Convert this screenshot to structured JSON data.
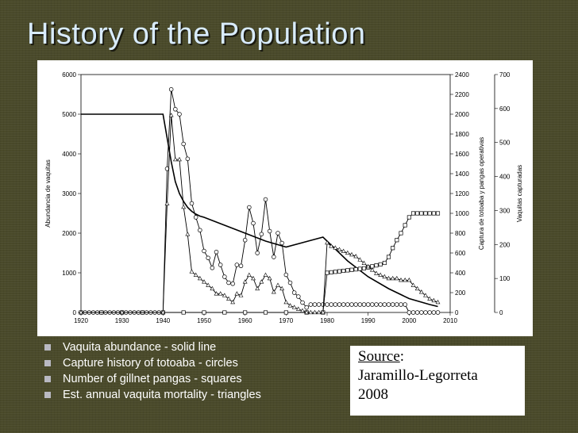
{
  "slide": {
    "title": "History of the Population",
    "bullets": [
      "Vaquita abundance - solid line",
      "Capture history of totoaba - circles",
      "Number of gillnet pangas - squares",
      "Est. annual vaquita mortality - triangles"
    ],
    "source": {
      "label": "Source",
      "colon": ":",
      "author": "Jaramillo-Legorreta",
      "year": "2008"
    }
  },
  "colors": {
    "background": "#4a4a2a",
    "title": "#d9ecff",
    "bullet": "#b9b9c2",
    "series": "#000000"
  },
  "chart_data": {
    "type": "line",
    "title": "",
    "xlabel": "",
    "xlim": [
      1920,
      2010
    ],
    "x_ticks": [
      "1920",
      "1930",
      "1940",
      "1950",
      "1960",
      "1970",
      "1980",
      "1990",
      "2000",
      "2010"
    ],
    "y_axes": [
      {
        "label": "Abundancia de vaquitas",
        "position": "left",
        "ylim": [
          0,
          6000
        ],
        "ticks": [
          "0",
          "1000",
          "2000",
          "3000",
          "4000",
          "5000",
          "6000"
        ]
      },
      {
        "label": "Captura de totoaba y pangas operativas",
        "position": "right-inner",
        "ylim": [
          0,
          2400
        ],
        "ticks": [
          "0",
          "200",
          "400",
          "600",
          "800",
          "1000",
          "1200",
          "1400",
          "1600",
          "1800",
          "2000",
          "2200",
          "2400"
        ]
      },
      {
        "label": "Vaquitas capturadas",
        "position": "right-outer",
        "ylim": [
          0,
          700
        ],
        "ticks": [
          "0",
          "100",
          "200",
          "300",
          "400",
          "500",
          "600",
          "700"
        ]
      }
    ],
    "grid": false,
    "legend": "none",
    "series": [
      {
        "axis": 0,
        "marker": "none",
        "x": [
          1920,
          1940,
          1941,
          1942,
          1943,
          1944,
          1945,
          1946,
          1947,
          1948,
          1949,
          1950,
          1955,
          1960,
          1965,
          1970,
          1979,
          1985,
          1990,
          1995,
          2000,
          2005,
          2007
        ],
        "y": [
          5000,
          5000,
          4400,
          3800,
          3300,
          3000,
          2800,
          2650,
          2550,
          2480,
          2430,
          2400,
          2200,
          2000,
          1800,
          1650,
          1900,
          1300,
          900,
          600,
          350,
          200,
          150
        ]
      },
      {
        "axis": 1,
        "marker": "circle",
        "x": [
          1920,
          1921,
          1922,
          1923,
          1924,
          1925,
          1926,
          1927,
          1928,
          1929,
          1930,
          1931,
          1932,
          1933,
          1934,
          1935,
          1936,
          1937,
          1938,
          1939,
          1940,
          1941,
          1942,
          1943,
          1944,
          1945,
          1946,
          1947,
          1948,
          1949,
          1950,
          1951,
          1952,
          1953,
          1954,
          1955,
          1956,
          1957,
          1958,
          1959,
          1960,
          1961,
          1962,
          1963,
          1964,
          1965,
          1966,
          1967,
          1968,
          1969,
          1970,
          1971,
          1972,
          1973,
          1974,
          1975,
          1976,
          1977,
          1978,
          1979,
          1980,
          1981,
          1982,
          1983,
          1984,
          1985,
          1986,
          1987,
          1988,
          1989,
          1990,
          1991,
          1992,
          1993,
          1994,
          1995,
          1996,
          1997,
          1998,
          1999,
          2000,
          2001,
          2002,
          2003,
          2004,
          2005,
          2006,
          2007
        ],
        "y": [
          0,
          0,
          0,
          0,
          0,
          0,
          0,
          0,
          0,
          0,
          0,
          0,
          0,
          0,
          0,
          0,
          0,
          0,
          0,
          0,
          0,
          1450,
          2250,
          2050,
          2000,
          1700,
          1550,
          1100,
          960,
          830,
          620,
          550,
          450,
          610,
          480,
          360,
          300,
          290,
          480,
          470,
          730,
          1060,
          900,
          600,
          790,
          1140,
          820,
          560,
          800,
          700,
          380,
          300,
          200,
          160,
          100,
          50,
          80,
          80,
          80,
          80,
          80,
          80,
          80,
          80,
          80,
          80,
          80,
          80,
          80,
          80,
          80,
          80,
          80,
          80,
          80,
          80,
          80,
          80,
          80,
          80,
          0,
          0,
          0,
          0,
          0,
          0,
          0,
          0
        ]
      },
      {
        "axis": 1,
        "marker": "square",
        "x": [
          1920,
          1925,
          1930,
          1935,
          1940,
          1945,
          1950,
          1955,
          1960,
          1965,
          1970,
          1975,
          1979,
          1980,
          1981,
          1982,
          1983,
          1984,
          1985,
          1986,
          1987,
          1988,
          1989,
          1990,
          1991,
          1992,
          1993,
          1994,
          1995,
          1996,
          1997,
          1998,
          1999,
          2000,
          2001,
          2002,
          2003,
          2004,
          2005,
          2006,
          2007
        ],
        "y": [
          0,
          0,
          0,
          0,
          0,
          0,
          0,
          0,
          0,
          0,
          0,
          0,
          0,
          400,
          405,
          410,
          415,
          420,
          425,
          430,
          435,
          440,
          445,
          455,
          465,
          475,
          485,
          500,
          560,
          650,
          730,
          800,
          880,
          960,
          1000,
          1000,
          1000,
          1000,
          1000,
          1000,
          1000
        ]
      },
      {
        "axis": 2,
        "marker": "triangle",
        "x": [
          1920,
          1930,
          1940,
          1941,
          1942,
          1943,
          1944,
          1945,
          1946,
          1947,
          1948,
          1949,
          1950,
          1951,
          1952,
          1953,
          1954,
          1955,
          1956,
          1957,
          1958,
          1959,
          1960,
          1961,
          1962,
          1963,
          1964,
          1965,
          1966,
          1967,
          1968,
          1969,
          1970,
          1971,
          1972,
          1973,
          1974,
          1975,
          1976,
          1977,
          1978,
          1979,
          1980,
          1981,
          1982,
          1983,
          1984,
          1985,
          1986,
          1987,
          1988,
          1989,
          1990,
          1991,
          1992,
          1993,
          1994,
          1995,
          1996,
          1997,
          1998,
          1999,
          2000,
          2001,
          2002,
          2003,
          2004,
          2005,
          2006,
          2007
        ],
        "y": [
          0,
          0,
          0,
          320,
          580,
          450,
          450,
          310,
          230,
          120,
          110,
          100,
          90,
          80,
          70,
          55,
          55,
          50,
          40,
          30,
          55,
          50,
          90,
          110,
          100,
          70,
          90,
          110,
          100,
          60,
          80,
          70,
          30,
          20,
          15,
          10,
          5,
          0,
          0,
          0,
          0,
          0,
          205,
          195,
          190,
          185,
          180,
          175,
          170,
          165,
          155,
          145,
          135,
          125,
          115,
          110,
          105,
          100,
          100,
          100,
          95,
          95,
          95,
          80,
          70,
          60,
          50,
          40,
          35,
          30
        ]
      }
    ]
  }
}
